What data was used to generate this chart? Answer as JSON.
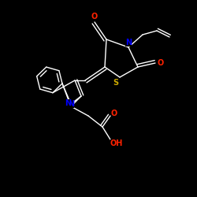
{
  "bg_color": "#000000",
  "line_color": "#ffffff",
  "atom_colors": {
    "O": "#ff2200",
    "N": "#0000ff",
    "S": "#ccaa00",
    "C": "#ffffff",
    "H": "#ffffff"
  },
  "figsize": [
    2.5,
    2.5
  ],
  "dpi": 100,
  "lw": 1.0,
  "fs": 7.0
}
